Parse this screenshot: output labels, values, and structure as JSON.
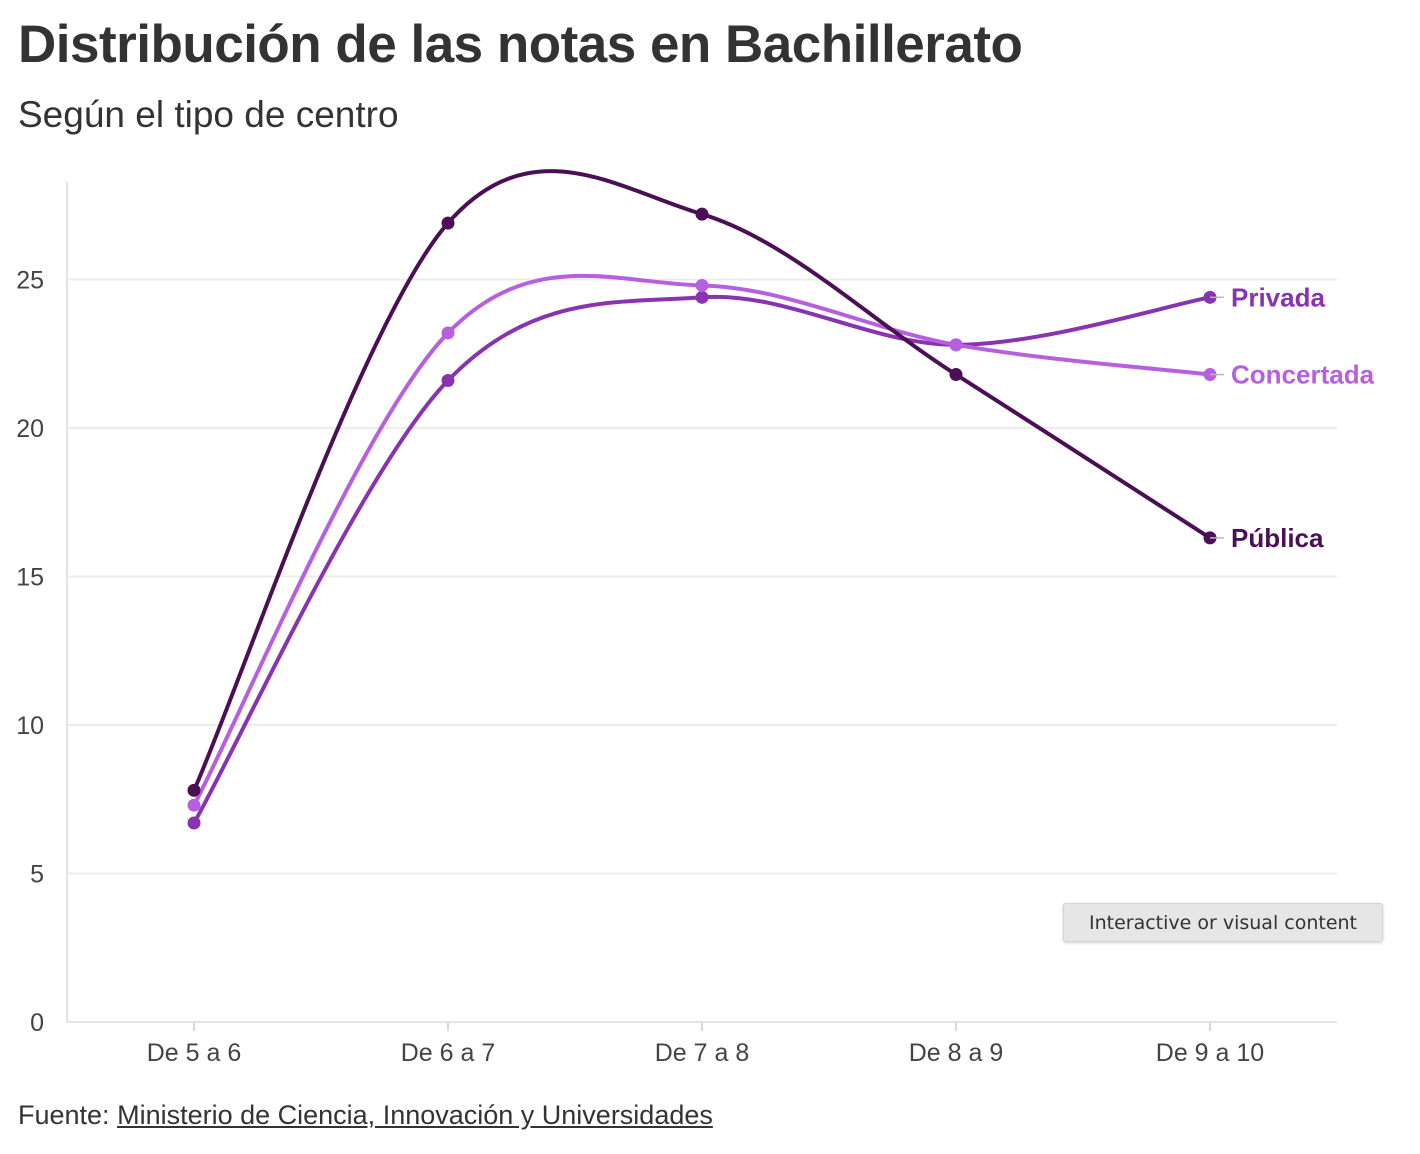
{
  "header": {
    "title": "Distribución de las notas en Bachillerato",
    "subtitle": "Según el tipo de centro"
  },
  "footer": {
    "source_prefix": "Fuente:",
    "source_link": "Ministerio de Ciencia, Innovación y Universidades"
  },
  "overlay": {
    "badge_text": "Interactive or visual content"
  },
  "chart_data": {
    "type": "line",
    "title": "Distribución de las notas en Bachillerato",
    "subtitle": "Según el tipo de centro",
    "xlabel": "",
    "ylabel": "",
    "categories": [
      "De 5 a 6",
      "De 6 a 7",
      "De 7 a 8",
      "De 8 a 9",
      "De 9 a 10"
    ],
    "ylim": [
      0,
      28
    ],
    "yticks": [
      0,
      5,
      10,
      15,
      20,
      25
    ],
    "ytick_labels": [
      "0",
      "5",
      "10",
      "15",
      "20",
      "25"
    ],
    "grid": true,
    "curve": "smooth",
    "legend": "labels at line ends (right)",
    "series": [
      {
        "name": "Privada",
        "color": "#8833b0",
        "values": [
          6.7,
          21.6,
          24.4,
          22.8,
          24.4
        ]
      },
      {
        "name": "Concertada",
        "color": "#b660e0",
        "values": [
          7.3,
          23.2,
          24.8,
          22.8,
          21.8
        ]
      },
      {
        "name": "Pública",
        "color": "#4a0f55",
        "values": [
          7.8,
          26.9,
          27.2,
          21.8,
          16.3
        ]
      }
    ]
  }
}
